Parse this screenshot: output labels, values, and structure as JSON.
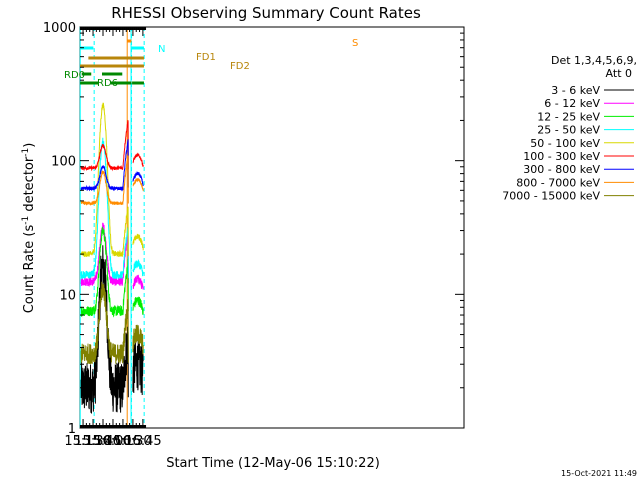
{
  "chart_data": {
    "type": "line",
    "title": "RHESSI Observing Summary Count Rates",
    "xlabel": "Start Time (12-May-06 15:10:22)",
    "ylabel_main": "Count Rate (s",
    "ylabel_sup1": "-1",
    "ylabel_mid": " detector",
    "ylabel_sup2": "-1",
    "ylabel_end": ")",
    "yscale": "log",
    "ylim": [
      1,
      1000
    ],
    "xlim_min": [
      910.4,
      1488
    ],
    "yticks": [
      {
        "v": 1,
        "label": "1"
      },
      {
        "v": 10,
        "label": "10"
      },
      {
        "v": 100,
        "label": "100"
      },
      {
        "v": 1000,
        "label": "1000"
      }
    ],
    "xticks": [
      {
        "v": 915,
        "label": "15:15"
      },
      {
        "v": 930,
        "label": "15:30"
      },
      {
        "v": 945,
        "label": "15:45"
      },
      {
        "v": 960,
        "label": "16:00"
      },
      {
        "v": 975,
        "label": "16:15"
      },
      {
        "v": 990,
        "label": "16:30"
      },
      {
        "v": 1005,
        "label": "16:45"
      }
    ],
    "legend_header": [
      "Det 1,3,4,5,6,9,",
      "Att 0"
    ],
    "legend_position": "right",
    "series": [
      {
        "name": "3 - 6 keV",
        "color": "#000000"
      },
      {
        "name": "6 - 12 keV",
        "color": "#ff00ff"
      },
      {
        "name": "12 - 25 keV",
        "color": "#00ee00"
      },
      {
        "name": "25 - 50 keV",
        "color": "#00ffff"
      },
      {
        "name": "50 - 100 keV",
        "color": "#d8d800"
      },
      {
        "name": "100 - 300 keV",
        "color": "#ff0000"
      },
      {
        "name": "300 - 800 keV",
        "color": "#0000ff"
      },
      {
        "name": "800 - 7000 keV",
        "color": "#ff8c00"
      },
      {
        "name": "7000 - 15000 keV",
        "color": "#808000"
      }
    ],
    "flag_labels": {
      "n": "N",
      "s": "S",
      "fd1": "FD1",
      "fd2": "FD2",
      "rd0": "RD0",
      "rd6": "RD6"
    },
    "flag_colors": {
      "n": "#00ffff",
      "s": "#ff8c00",
      "fd": "#b8860b",
      "rd": "#008800"
    },
    "timestamp": "15-Oct-2021 11:49"
  }
}
